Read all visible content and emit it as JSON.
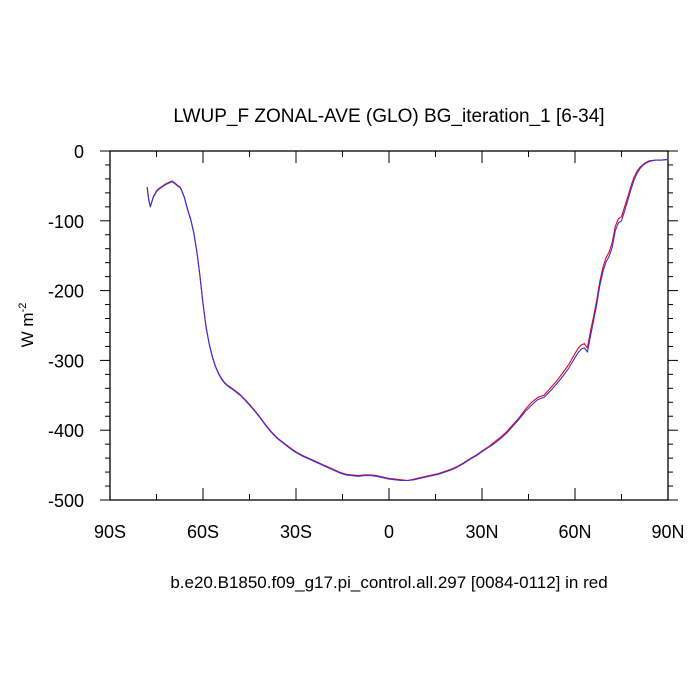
{
  "chart_data": {
    "type": "line",
    "title": "LWUP_F ZONAL-AVE (GLO) BG_iteration_1 [6-34]",
    "xlabel": "",
    "ylabel": "W m",
    "ylabel_superscript": "-2",
    "caption": "b.e20.B1850.f09_g17.pi_control.all.297 [0084-0112] in red",
    "xlim": [
      -90,
      90
    ],
    "ylim": [
      -500,
      0
    ],
    "x_ticks": [
      {
        "value": -90,
        "label": "90S"
      },
      {
        "value": -60,
        "label": "60S"
      },
      {
        "value": -30,
        "label": "30S"
      },
      {
        "value": 0,
        "label": "0"
      },
      {
        "value": 30,
        "label": "30N"
      },
      {
        "value": 60,
        "label": "60N"
      },
      {
        "value": 90,
        "label": "90N"
      }
    ],
    "y_ticks": [
      {
        "value": 0,
        "label": "0"
      },
      {
        "value": -100,
        "label": "-100"
      },
      {
        "value": -200,
        "label": "-200"
      },
      {
        "value": -300,
        "label": "-300"
      },
      {
        "value": -400,
        "label": "-400"
      },
      {
        "value": -500,
        "label": "-500"
      }
    ],
    "series": [
      {
        "color": "#e8001c",
        "x": [
          -78,
          -77.5,
          -77,
          -76,
          -75,
          -74,
          -73,
          -72,
          -71,
          -70,
          -69,
          -68,
          -67.5,
          -67,
          -66,
          -65,
          -64,
          -63,
          -62,
          -61,
          -60,
          -59,
          -58,
          -57,
          -56,
          -55,
          -54,
          -53,
          -52,
          -51,
          -50,
          -48,
          -46,
          -44,
          -42,
          -40,
          -38,
          -36,
          -34,
          -32,
          -30,
          -28,
          -26,
          -24,
          -22,
          -20,
          -18,
          -16,
          -14,
          -12,
          -10,
          -8,
          -6,
          -4,
          -2,
          0,
          2,
          4,
          6,
          8,
          10,
          12,
          14,
          16,
          18,
          20,
          22,
          24,
          26,
          28,
          30,
          32,
          34,
          36,
          38,
          40,
          42,
          44,
          46,
          48,
          50,
          52,
          54,
          56,
          58,
          60,
          61,
          62,
          63,
          64,
          65,
          66,
          67,
          68,
          69,
          70,
          71,
          72,
          73,
          74,
          75,
          76,
          77,
          78,
          79,
          80,
          81,
          82,
          83,
          84,
          86,
          88,
          90
        ],
        "y": [
          -52,
          -70,
          -80,
          -65,
          -57,
          -53,
          -50,
          -47,
          -45,
          -43,
          -46,
          -50,
          -51,
          -55,
          -66,
          -83,
          -97,
          -116,
          -143,
          -178,
          -218,
          -252,
          -276,
          -294,
          -308,
          -318,
          -326,
          -332,
          -336,
          -339,
          -342,
          -349,
          -358,
          -368,
          -379,
          -391,
          -402,
          -411,
          -418,
          -425,
          -431,
          -436,
          -440,
          -444,
          -448,
          -452,
          -456,
          -460,
          -463,
          -464,
          -465,
          -464,
          -464,
          -465,
          -467,
          -469,
          -470,
          -471,
          -472,
          -470,
          -468,
          -466,
          -464,
          -462,
          -459,
          -456,
          -452,
          -447,
          -441,
          -436,
          -430,
          -424,
          -417,
          -410,
          -402,
          -392,
          -382,
          -370,
          -360,
          -353,
          -350,
          -340,
          -330,
          -318,
          -306,
          -290,
          -283,
          -278,
          -276,
          -282,
          -258,
          -237,
          -214,
          -187,
          -167,
          -153,
          -145,
          -131,
          -108,
          -97,
          -94,
          -80,
          -66,
          -51,
          -38,
          -29,
          -23,
          -19,
          -16,
          -14,
          -13,
          -13,
          -12
        ]
      },
      {
        "color": "#3333dd",
        "x": [
          -78,
          -77.5,
          -77,
          -76,
          -75,
          -74,
          -73,
          -72,
          -71,
          -70,
          -69,
          -68,
          -67.5,
          -67,
          -66,
          -65,
          -64,
          -63,
          -62,
          -61,
          -60,
          -59,
          -58,
          -57,
          -56,
          -55,
          -54,
          -53,
          -52,
          -51,
          -50,
          -48,
          -46,
          -44,
          -42,
          -40,
          -38,
          -36,
          -34,
          -32,
          -30,
          -28,
          -26,
          -24,
          -22,
          -20,
          -18,
          -16,
          -14,
          -12,
          -10,
          -8,
          -6,
          -4,
          -2,
          0,
          2,
          4,
          6,
          8,
          10,
          12,
          14,
          16,
          18,
          20,
          22,
          24,
          26,
          28,
          30,
          32,
          34,
          36,
          38,
          40,
          42,
          44,
          46,
          48,
          50,
          52,
          54,
          56,
          58,
          60,
          61,
          62,
          63,
          64,
          65,
          66,
          67,
          68,
          69,
          70,
          71,
          72,
          73,
          74,
          75,
          76,
          77,
          78,
          79,
          80,
          81,
          82,
          83,
          84,
          86,
          88,
          90
        ],
        "y": [
          -53,
          -71,
          -80,
          -66,
          -58,
          -54,
          -51,
          -48,
          -46,
          -44,
          -47,
          -51,
          -52,
          -56,
          -67,
          -84,
          -98,
          -117,
          -144,
          -179,
          -219,
          -253,
          -277,
          -295,
          -309,
          -319,
          -327,
          -333,
          -337,
          -340,
          -343,
          -350,
          -359,
          -369,
          -380,
          -392,
          -403,
          -412,
          -419,
          -426,
          -432,
          -437,
          -441,
          -445,
          -449,
          -453,
          -457,
          -461,
          -464,
          -465,
          -466,
          -465,
          -465,
          -466,
          -468,
          -470,
          -471,
          -472,
          -472,
          -471,
          -469,
          -467,
          -465,
          -463,
          -460,
          -457,
          -453,
          -448,
          -442,
          -437,
          -431,
          -425,
          -419,
          -412,
          -404,
          -394,
          -384,
          -373,
          -364,
          -356,
          -353,
          -344,
          -334,
          -323,
          -311,
          -296,
          -289,
          -284,
          -282,
          -288,
          -265,
          -243,
          -220,
          -193,
          -173,
          -159,
          -151,
          -138,
          -114,
          -103,
          -100,
          -86,
          -71,
          -56,
          -42,
          -32,
          -25,
          -20,
          -17,
          -15,
          -13,
          -13,
          -12
        ]
      }
    ]
  }
}
